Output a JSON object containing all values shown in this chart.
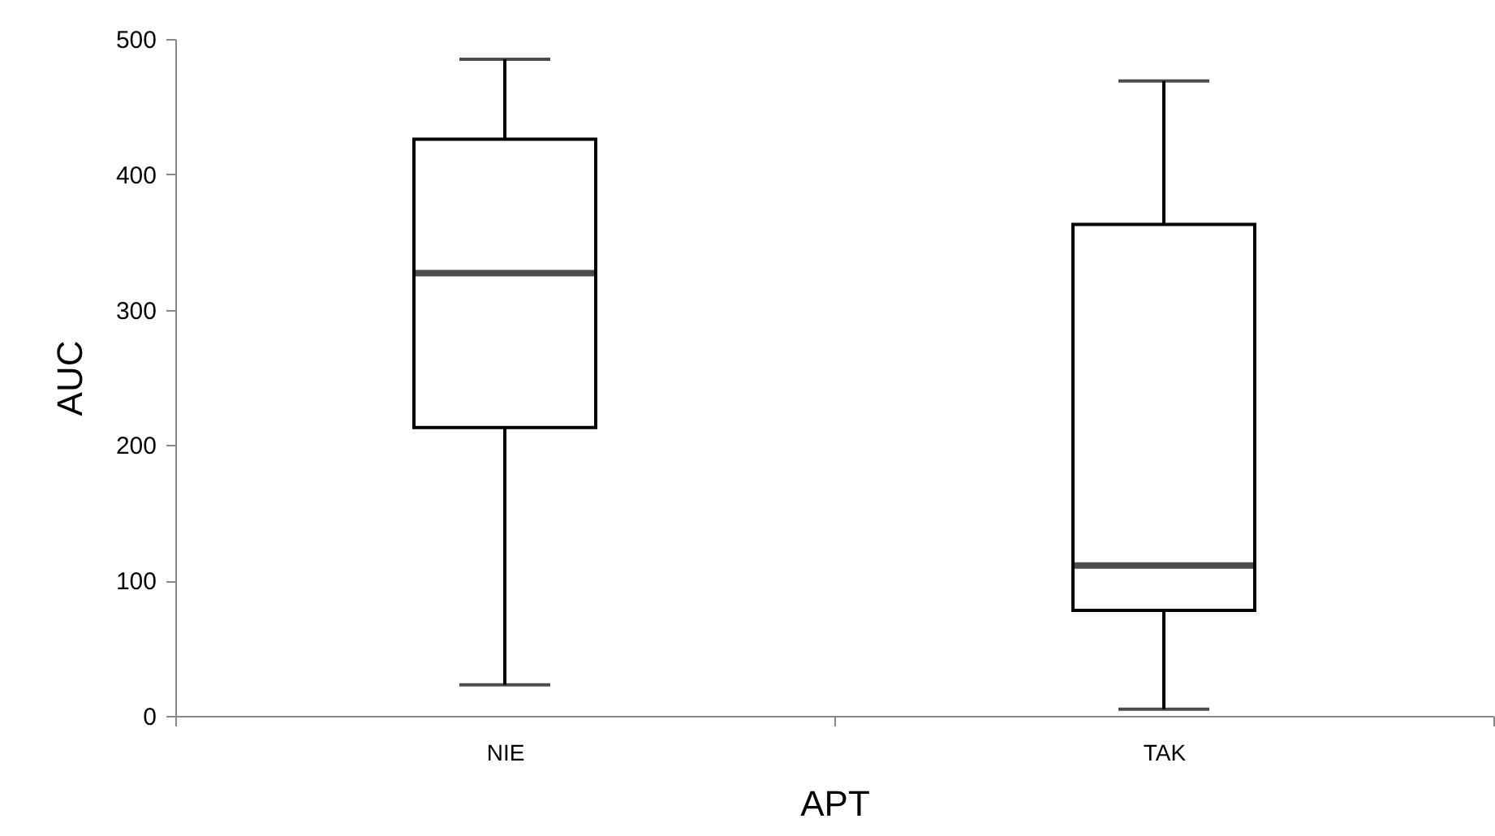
{
  "chart_data": {
    "type": "box",
    "xlabel": "APT",
    "ylabel": "AUC",
    "categories": [
      "NIE",
      "TAK"
    ],
    "boxes": [
      {
        "low": 23,
        "q1": 213,
        "median": 327,
        "q3": 426,
        "high": 485
      },
      {
        "low": 5,
        "q1": 78,
        "median": 111,
        "q3": 363,
        "high": 469
      }
    ],
    "ylim": [
      0,
      500
    ],
    "yticks": [
      0,
      100,
      200,
      300,
      400,
      500
    ],
    "grid": false
  }
}
